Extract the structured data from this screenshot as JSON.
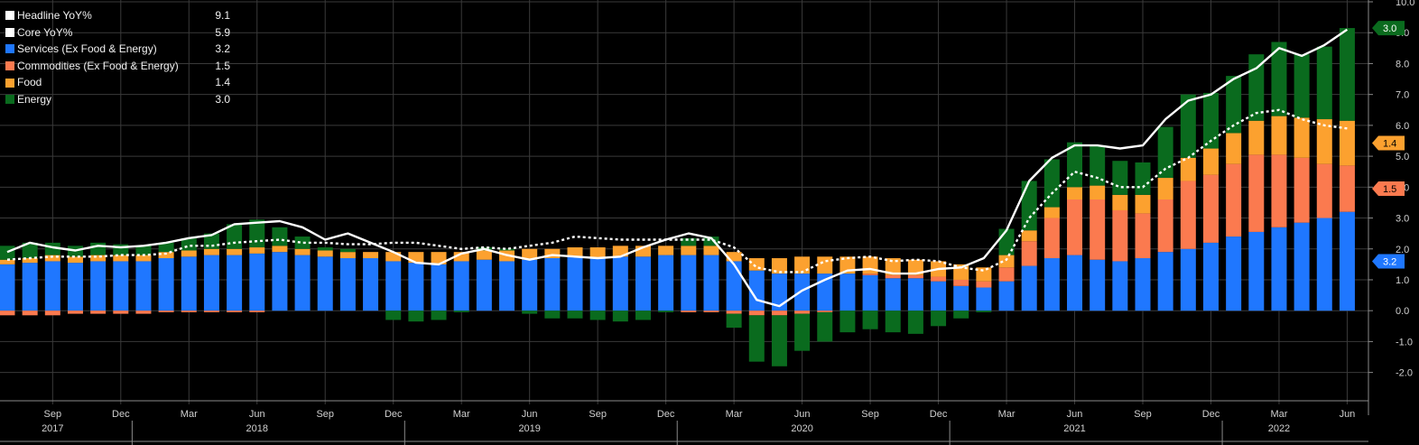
{
  "chart_data": {
    "type": "bar",
    "stacked": true,
    "colors": {
      "background": "#000000",
      "grid": "#3a3a3a",
      "services": "#1f77ff",
      "commodities": "#fb7a4f",
      "food": "#fca12f",
      "energy": "#0a6b1e",
      "headline": "#ffffff",
      "core": "#ffffff"
    },
    "ylim": [
      -2.8,
      10.0
    ],
    "yticks": [
      -2.0,
      -1.0,
      0.0,
      1.0,
      2.0,
      3.0,
      4.0,
      5.0,
      6.0,
      7.0,
      8.0,
      9.0,
      10.0
    ],
    "ytick_labels": [
      "-2.0",
      "-1.0",
      "0.0",
      "1.0",
      "2.0",
      "3.0",
      "4.0",
      "5.0",
      "6.0",
      "7.0",
      "8.0",
      "9.0",
      "10.0"
    ],
    "grid": true,
    "legend_position": "top-left",
    "months": [
      "2017-07",
      "2017-08",
      "2017-09",
      "2017-10",
      "2017-11",
      "2017-12",
      "2018-01",
      "2018-02",
      "2018-03",
      "2018-04",
      "2018-05",
      "2018-06",
      "2018-07",
      "2018-08",
      "2018-09",
      "2018-10",
      "2018-11",
      "2018-12",
      "2019-01",
      "2019-02",
      "2019-03",
      "2019-04",
      "2019-05",
      "2019-06",
      "2019-07",
      "2019-08",
      "2019-09",
      "2019-10",
      "2019-11",
      "2019-12",
      "2020-01",
      "2020-02",
      "2020-03",
      "2020-04",
      "2020-05",
      "2020-06",
      "2020-07",
      "2020-08",
      "2020-09",
      "2020-10",
      "2020-11",
      "2020-12",
      "2021-01",
      "2021-02",
      "2021-03",
      "2021-04",
      "2021-05",
      "2021-06",
      "2021-07",
      "2021-08",
      "2021-09",
      "2021-10",
      "2021-11",
      "2021-12",
      "2022-01",
      "2022-02",
      "2022-03",
      "2022-04",
      "2022-05",
      "2022-06"
    ],
    "month_tick_labels": [
      {
        "month": "2017-09",
        "label": "Sep"
      },
      {
        "month": "2017-12",
        "label": "Dec"
      },
      {
        "month": "2018-03",
        "label": "Mar"
      },
      {
        "month": "2018-06",
        "label": "Jun"
      },
      {
        "month": "2018-09",
        "label": "Sep"
      },
      {
        "month": "2018-12",
        "label": "Dec"
      },
      {
        "month": "2019-03",
        "label": "Mar"
      },
      {
        "month": "2019-06",
        "label": "Jun"
      },
      {
        "month": "2019-09",
        "label": "Sep"
      },
      {
        "month": "2019-12",
        "label": "Dec"
      },
      {
        "month": "2020-03",
        "label": "Mar"
      },
      {
        "month": "2020-06",
        "label": "Jun"
      },
      {
        "month": "2020-09",
        "label": "Sep"
      },
      {
        "month": "2020-12",
        "label": "Dec"
      },
      {
        "month": "2021-03",
        "label": "Mar"
      },
      {
        "month": "2021-06",
        "label": "Jun"
      },
      {
        "month": "2021-09",
        "label": "Sep"
      },
      {
        "month": "2021-12",
        "label": "Dec"
      },
      {
        "month": "2022-03",
        "label": "Mar"
      },
      {
        "month": "2022-06",
        "label": "Jun"
      }
    ],
    "year_labels": [
      {
        "label": "2017",
        "month": "2017-09"
      },
      {
        "label": "2018",
        "month": "2018-06"
      },
      {
        "label": "2019",
        "month": "2019-06"
      },
      {
        "label": "2020",
        "month": "2020-06"
      },
      {
        "label": "2021",
        "month": "2021-06"
      },
      {
        "label": "2022",
        "month": "2022-03"
      }
    ],
    "series": [
      {
        "name": "Services (Ex Food & Energy)",
        "key": "services",
        "kind": "bar",
        "last": "3.2",
        "values": [
          1.5,
          1.55,
          1.6,
          1.55,
          1.6,
          1.6,
          1.6,
          1.7,
          1.75,
          1.8,
          1.8,
          1.85,
          1.9,
          1.8,
          1.75,
          1.7,
          1.7,
          1.6,
          1.55,
          1.5,
          1.6,
          1.65,
          1.6,
          1.65,
          1.7,
          1.75,
          1.7,
          1.75,
          1.75,
          1.8,
          1.8,
          1.8,
          1.6,
          1.3,
          1.2,
          1.2,
          1.2,
          1.2,
          1.15,
          1.05,
          1.05,
          0.95,
          0.8,
          0.75,
          0.95,
          1.45,
          1.7,
          1.8,
          1.65,
          1.6,
          1.7,
          1.9,
          2.0,
          2.2,
          2.4,
          2.55,
          2.7,
          2.85,
          3.0,
          3.2
        ]
      },
      {
        "name": "Commodities (Ex Food & Energy)",
        "key": "commodities",
        "kind": "bar",
        "last": "1.5",
        "values": [
          -0.15,
          -0.15,
          -0.15,
          -0.1,
          -0.1,
          -0.1,
          -0.1,
          -0.05,
          -0.05,
          -0.05,
          -0.05,
          -0.05,
          0.0,
          0.0,
          0.0,
          0.0,
          0.0,
          0.0,
          0.0,
          0.0,
          0.0,
          0.0,
          0.0,
          0.0,
          0.0,
          0.0,
          0.0,
          0.0,
          0.0,
          0.0,
          -0.05,
          -0.05,
          -0.1,
          -0.15,
          -0.15,
          -0.1,
          -0.05,
          0.0,
          0.05,
          0.1,
          0.1,
          0.15,
          0.2,
          0.2,
          0.45,
          0.8,
          1.3,
          1.8,
          1.95,
          1.65,
          1.45,
          1.7,
          2.2,
          2.2,
          2.35,
          2.5,
          2.35,
          2.1,
          1.75,
          1.5
        ]
      },
      {
        "name": "Food",
        "key": "food",
        "kind": "bar",
        "last": "1.4",
        "values": [
          0.15,
          0.15,
          0.2,
          0.2,
          0.2,
          0.2,
          0.2,
          0.2,
          0.2,
          0.2,
          0.2,
          0.2,
          0.2,
          0.2,
          0.2,
          0.2,
          0.2,
          0.3,
          0.35,
          0.4,
          0.3,
          0.3,
          0.35,
          0.35,
          0.3,
          0.3,
          0.35,
          0.35,
          0.35,
          0.3,
          0.3,
          0.3,
          0.3,
          0.4,
          0.5,
          0.55,
          0.55,
          0.55,
          0.55,
          0.55,
          0.5,
          0.5,
          0.5,
          0.45,
          0.4,
          0.35,
          0.35,
          0.4,
          0.45,
          0.5,
          0.6,
          0.7,
          0.75,
          0.85,
          1.0,
          1.1,
          1.25,
          1.3,
          1.45,
          1.45
        ]
      },
      {
        "name": "Energy",
        "key": "energy",
        "kind": "bar",
        "last": "3.0",
        "values": [
          0.45,
          0.5,
          0.4,
          0.35,
          0.4,
          0.35,
          0.3,
          0.3,
          0.4,
          0.5,
          0.8,
          0.9,
          0.6,
          0.4,
          0.1,
          0.1,
          0.0,
          -0.3,
          -0.35,
          -0.3,
          -0.05,
          0.1,
          0.05,
          -0.1,
          -0.25,
          -0.25,
          -0.3,
          -0.35,
          -0.3,
          -0.05,
          0.25,
          0.3,
          -0.45,
          -1.5,
          -1.65,
          -1.2,
          -0.95,
          -0.7,
          -0.6,
          -0.7,
          -0.75,
          -0.5,
          -0.25,
          -0.05,
          0.85,
          1.6,
          1.55,
          1.45,
          1.3,
          1.1,
          1.05,
          1.65,
          2.05,
          1.8,
          1.85,
          2.15,
          2.4,
          2.05,
          2.35,
          3.0
        ]
      },
      {
        "name": "Headline YoY%",
        "key": "headline",
        "kind": "line",
        "style": "solid",
        "last": "9.1",
        "values": [
          1.9,
          2.2,
          2.05,
          1.95,
          2.1,
          2.05,
          2.1,
          2.2,
          2.35,
          2.45,
          2.8,
          2.85,
          2.9,
          2.7,
          2.3,
          2.5,
          2.2,
          1.9,
          1.55,
          1.5,
          1.85,
          2.0,
          1.8,
          1.65,
          1.8,
          1.75,
          1.7,
          1.75,
          2.05,
          2.3,
          2.5,
          2.35,
          1.5,
          0.35,
          0.15,
          0.65,
          1.0,
          1.3,
          1.35,
          1.2,
          1.2,
          1.35,
          1.4,
          1.7,
          2.6,
          4.2,
          4.95,
          5.35,
          5.35,
          5.25,
          5.35,
          6.2,
          6.8,
          7.0,
          7.5,
          7.85,
          8.5,
          8.25,
          8.6,
          9.1
        ]
      },
      {
        "name": "Core YoY%",
        "key": "core",
        "kind": "line",
        "style": "dashed",
        "last": "5.9",
        "values": [
          1.65,
          1.7,
          1.75,
          1.75,
          1.75,
          1.8,
          1.8,
          1.85,
          2.1,
          2.1,
          2.2,
          2.25,
          2.3,
          2.2,
          2.2,
          2.15,
          2.15,
          2.2,
          2.2,
          2.1,
          2.0,
          2.05,
          2.0,
          2.1,
          2.2,
          2.4,
          2.35,
          2.3,
          2.3,
          2.3,
          2.3,
          2.3,
          2.05,
          1.4,
          1.25,
          1.25,
          1.6,
          1.7,
          1.75,
          1.6,
          1.65,
          1.6,
          1.4,
          1.3,
          1.65,
          3.0,
          3.8,
          4.5,
          4.3,
          4.0,
          4.0,
          4.6,
          4.95,
          5.5,
          6.0,
          6.4,
          6.5,
          6.2,
          6.0,
          5.9
        ]
      }
    ]
  }
}
